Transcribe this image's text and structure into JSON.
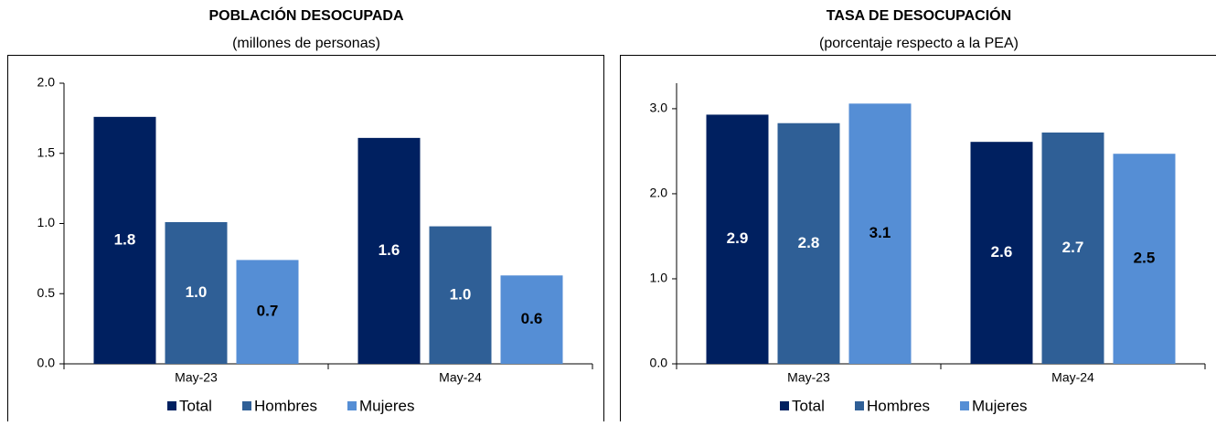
{
  "chart_data": [
    {
      "type": "bar",
      "title": "POBLACIÓN DESOCUPADA",
      "subtitle": "(millones de personas)",
      "categories": [
        "May-23",
        "May-24"
      ],
      "series": [
        {
          "name": "Total",
          "color": "#002060",
          "label_color": "#ffffff",
          "values": [
            1.76,
            1.61
          ],
          "value_labels": [
            "1.8",
            "1.6"
          ]
        },
        {
          "name": "Hombres",
          "color": "#2f5f96",
          "label_color": "#ffffff",
          "values": [
            1.01,
            0.98
          ],
          "value_labels": [
            "1.0",
            "1.0"
          ]
        },
        {
          "name": "Mujeres",
          "color": "#558ed5",
          "label_color": "#000000",
          "values": [
            0.74,
            0.63
          ],
          "value_labels": [
            "0.7",
            "0.6"
          ]
        }
      ],
      "ylim": [
        0,
        2
      ],
      "yticks": [
        {
          "value": 0,
          "label": "0.0"
        },
        0.5,
        {
          "value": 1,
          "label": "1.0"
        },
        1.5,
        {
          "value": 2,
          "label": "2.0"
        }
      ],
      "legend": "bottom"
    },
    {
      "type": "bar",
      "title": "TASA DE DESOCUPACIÓN",
      "subtitle": "(porcentaje respecto a la PEA)",
      "categories": [
        "May-23",
        "May-24"
      ],
      "series": [
        {
          "name": "Total",
          "color": "#002060",
          "label_color": "#ffffff",
          "values": [
            2.93,
            2.61
          ],
          "value_labels": [
            "2.9",
            "2.6"
          ]
        },
        {
          "name": "Hombres",
          "color": "#2f5f96",
          "label_color": "#ffffff",
          "values": [
            2.83,
            2.72
          ],
          "value_labels": [
            "2.8",
            "2.7"
          ]
        },
        {
          "name": "Mujeres",
          "color": "#558ed5",
          "label_color": "#000000",
          "values": [
            3.06,
            2.47
          ],
          "value_labels": [
            "3.1",
            "2.5"
          ]
        }
      ],
      "ylim": [
        0,
        3.3
      ],
      "yticks": [
        {
          "value": 0,
          "label": "0.0"
        },
        {
          "value": 1,
          "label": "1.0"
        },
        {
          "value": 2,
          "label": "2.0"
        },
        {
          "value": 3,
          "label": "3.0"
        }
      ],
      "legend": "bottom"
    }
  ]
}
